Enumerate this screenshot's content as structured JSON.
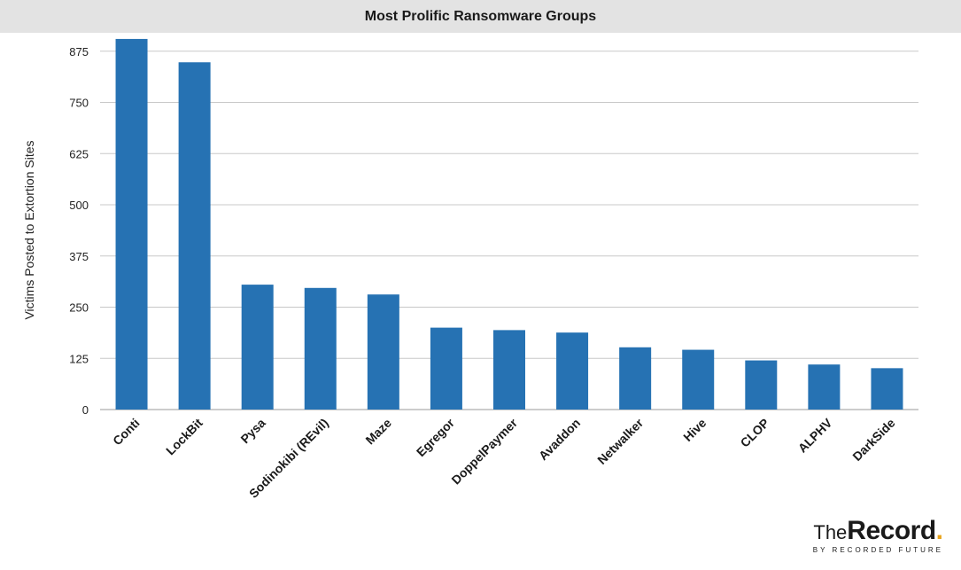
{
  "chart_data": {
    "type": "bar",
    "title": "Most Prolific Ransomware Groups",
    "xlabel": "",
    "ylabel": "Victims Posted to Extortion Sites",
    "categories": [
      "Conti",
      "LockBit",
      "Pysa",
      "Sodinokibi (REvil)",
      "Maze",
      "Egregor",
      "DoppelPaymer",
      "Avaddon",
      "Netwalker",
      "Hive",
      "CLOP",
      "ALPHV",
      "DarkSide"
    ],
    "values": [
      905,
      848,
      305,
      297,
      281,
      200,
      194,
      188,
      152,
      146,
      120,
      110,
      101
    ],
    "yticks": [
      "0",
      "125",
      "250",
      "375",
      "500",
      "625",
      "750",
      "875"
    ],
    "ylim": [
      0,
      920
    ],
    "grid": true,
    "bar_color": "#2672b3",
    "grid_color": "#c8c8c8"
  },
  "logo": {
    "the": "The",
    "record": "Record",
    "dot": ".",
    "sub": "BY RECORDED FUTURE",
    "accent_color": "#e8a31c"
  }
}
